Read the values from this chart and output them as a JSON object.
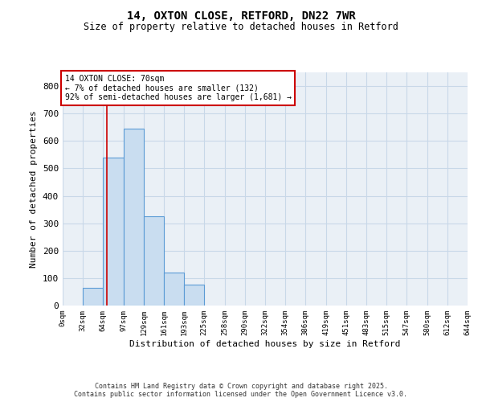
{
  "title1": "14, OXTON CLOSE, RETFORD, DN22 7WR",
  "title2": "Size of property relative to detached houses in Retford",
  "xlabel": "Distribution of detached houses by size in Retford",
  "ylabel": "Number of detached properties",
  "bins": [
    0,
    32,
    64,
    97,
    129,
    161,
    193,
    225,
    258,
    290,
    322,
    354,
    386,
    419,
    451,
    483,
    515,
    547,
    580,
    612,
    644
  ],
  "bin_labels": [
    "0sqm",
    "32sqm",
    "64sqm",
    "97sqm",
    "129sqm",
    "161sqm",
    "193sqm",
    "225sqm",
    "258sqm",
    "290sqm",
    "322sqm",
    "354sqm",
    "386sqm",
    "419sqm",
    "451sqm",
    "483sqm",
    "515sqm",
    "547sqm",
    "580sqm",
    "612sqm",
    "644sqm"
  ],
  "counts": [
    0,
    65,
    540,
    645,
    325,
    120,
    75,
    0,
    0,
    0,
    0,
    0,
    0,
    0,
    0,
    0,
    0,
    0,
    0,
    0
  ],
  "bar_color": "#c9ddf0",
  "bar_edgecolor": "#5b9bd5",
  "grid_color": "#c8d8e8",
  "property_size": 70,
  "red_line_color": "#cc0000",
  "annotation_text": "14 OXTON CLOSE: 70sqm\n← 7% of detached houses are smaller (132)\n92% of semi-detached houses are larger (1,681) →",
  "annotation_box_color": "#cc0000",
  "ylim": [
    0,
    850
  ],
  "yticks": [
    0,
    100,
    200,
    300,
    400,
    500,
    600,
    700,
    800
  ],
  "footer1": "Contains HM Land Registry data © Crown copyright and database right 2025.",
  "footer2": "Contains public sector information licensed under the Open Government Licence v3.0.",
  "bg_color": "#eaf0f6"
}
